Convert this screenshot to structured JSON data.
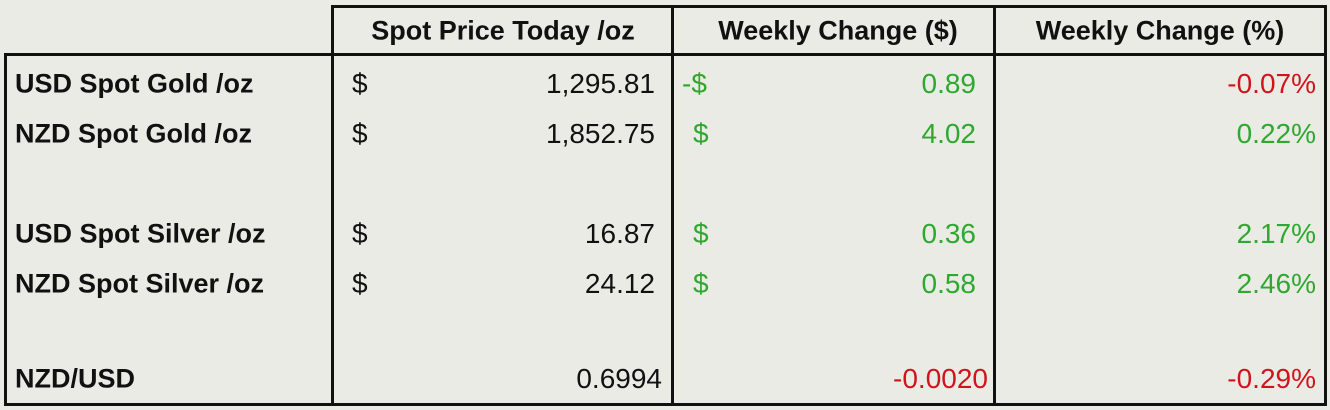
{
  "table": {
    "header": [
      "Spot Price Today /oz",
      "Weekly Change ($)",
      "Weekly Change (%)"
    ],
    "rows": [
      {
        "label": "USD Spot Gold /oz",
        "price_currency": "$",
        "price": "1,295.81",
        "change_currency": "-$",
        "change": "0.89",
        "change_pct": "-0.07%"
      },
      {
        "label": "NZD Spot Gold /oz",
        "price_currency": "$",
        "price": "1,852.75",
        "change_currency": "$",
        "change": "4.02",
        "change_pct": "0.22%"
      },
      {
        "label": "USD Spot Silver /oz",
        "price_currency": "$",
        "price": "16.87",
        "change_currency": "$",
        "change": "0.36",
        "change_pct": "2.17%"
      },
      {
        "label": "NZD Spot Silver /oz",
        "price_currency": "$",
        "price": "24.12",
        "change_currency": "$",
        "change": "0.58",
        "change_pct": "2.46%"
      },
      {
        "label": "NZD/USD",
        "price": "0.6994",
        "change": "-0.0020",
        "change_pct": "-0.29%"
      }
    ]
  }
}
